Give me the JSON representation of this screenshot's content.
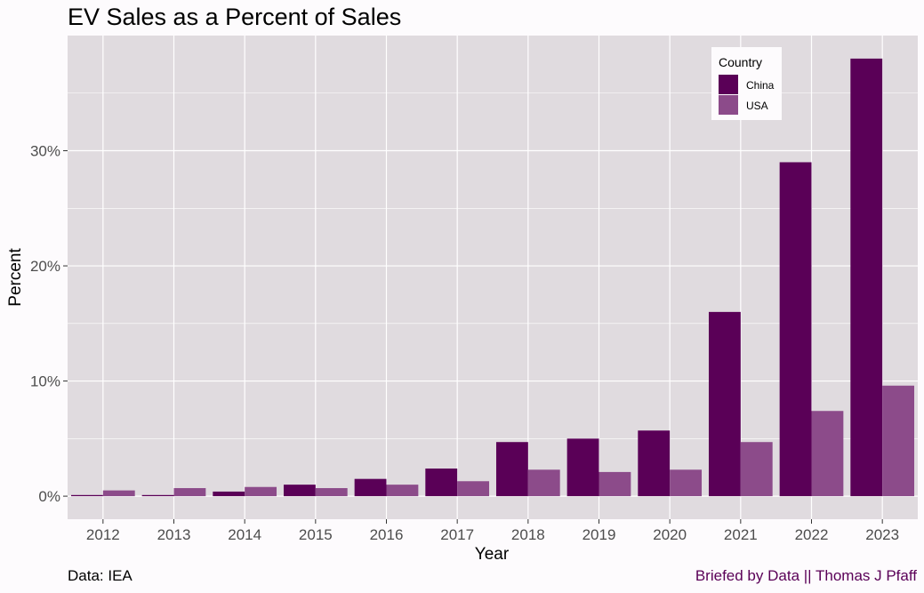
{
  "colors": {
    "background": "#fdfbfd",
    "panel": "#e0dbdf",
    "grid": "#ffffff",
    "china": "#5a0057",
    "usa": "#8c4b8a",
    "credit": "#5a0057"
  },
  "captions": {
    "source": "Data: IEA",
    "credit": "Briefed by Data || Thomas J Pfaff"
  },
  "chart_data": {
    "type": "bar",
    "title": "EV Sales as a Percent of Sales",
    "xlabel": "Year",
    "ylabel": "Percent",
    "categories": [
      "2012",
      "2013",
      "2014",
      "2015",
      "2016",
      "2017",
      "2018",
      "2019",
      "2020",
      "2021",
      "2022",
      "2023"
    ],
    "series": [
      {
        "name": "China",
        "values": [
          0.1,
          0.1,
          0.4,
          1.0,
          1.5,
          2.4,
          4.7,
          5.0,
          5.7,
          16.0,
          29.0,
          38.0
        ]
      },
      {
        "name": "USA",
        "values": [
          0.5,
          0.7,
          0.8,
          0.7,
          1.0,
          1.3,
          2.3,
          2.1,
          2.3,
          4.7,
          7.4,
          9.6
        ]
      }
    ],
    "ylim": [
      -2,
      40
    ],
    "yticks": [
      0,
      10,
      20,
      30
    ],
    "ytick_labels": [
      "0%",
      "10%",
      "20%",
      "30%"
    ],
    "grid": true,
    "legend": {
      "title": "Country",
      "position": "top-right"
    }
  }
}
